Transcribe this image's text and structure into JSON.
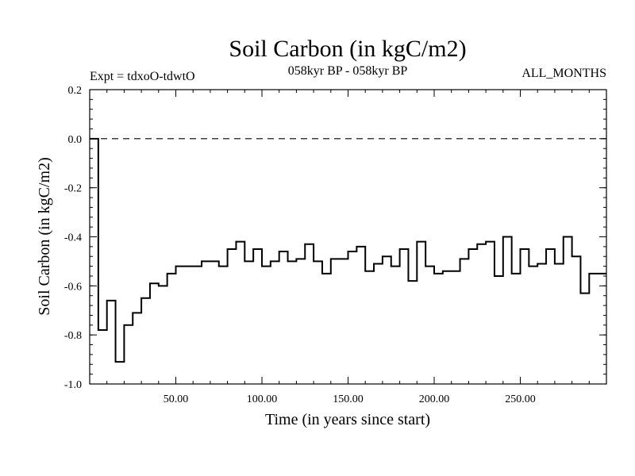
{
  "chart_data": {
    "type": "line",
    "title": "Soil Carbon (in kgC/m2)",
    "subtitle_left": "Expt = tdxoO-tdwtO",
    "subtitle_center": "058kyr BP - 058kyr BP",
    "subtitle_right": "ALL_MONTHS",
    "xlabel": "Time (in years since start)",
    "ylabel": "Soil Carbon (in kgC/m2)",
    "xlim": [
      0,
      300
    ],
    "ylim": [
      -1.0,
      0.2
    ],
    "x_ticks": [
      50,
      100,
      150,
      200,
      250
    ],
    "x_tick_labels": [
      "50.00",
      "100.00",
      "150.00",
      "200.00",
      "250.00"
    ],
    "y_ticks": [
      0.2,
      0,
      -0.2,
      -0.4,
      -0.6,
      -0.8,
      -1.0
    ],
    "y_tick_labels": [
      "0.2",
      "0.0",
      "-0.2",
      "-0.4",
      "-0.6",
      "-0.8",
      "-1.0"
    ],
    "reference_line": 0.0,
    "step_width": 5,
    "series": [
      {
        "x": [
          0,
          5,
          10,
          15,
          20,
          25,
          30,
          35,
          40,
          45,
          50,
          55,
          60,
          65,
          70,
          75,
          80,
          85,
          90,
          95,
          100,
          105,
          110,
          115,
          120,
          125,
          130,
          135,
          140,
          145,
          150,
          155,
          160,
          165,
          170,
          175,
          180,
          185,
          190,
          195,
          200,
          205,
          210,
          215,
          220,
          225,
          230,
          235,
          240,
          245,
          250,
          255,
          260,
          265,
          270,
          275,
          280,
          285,
          290,
          295
        ],
        "values": [
          0.0,
          -0.78,
          -0.66,
          -0.91,
          -0.76,
          -0.71,
          -0.65,
          -0.59,
          -0.6,
          -0.55,
          -0.52,
          -0.52,
          -0.52,
          -0.5,
          -0.5,
          -0.52,
          -0.45,
          -0.42,
          -0.5,
          -0.45,
          -0.52,
          -0.5,
          -0.46,
          -0.5,
          -0.49,
          -0.43,
          -0.5,
          -0.55,
          -0.49,
          -0.49,
          -0.46,
          -0.44,
          -0.54,
          -0.51,
          -0.48,
          -0.52,
          -0.45,
          -0.58,
          -0.42,
          -0.52,
          -0.55,
          -0.54,
          -0.54,
          -0.49,
          -0.45,
          -0.43,
          -0.42,
          -0.56,
          -0.4,
          -0.55,
          -0.45,
          -0.52,
          -0.51,
          -0.45,
          -0.51,
          -0.4,
          -0.48,
          -0.63,
          -0.55,
          -0.55
        ]
      }
    ]
  }
}
